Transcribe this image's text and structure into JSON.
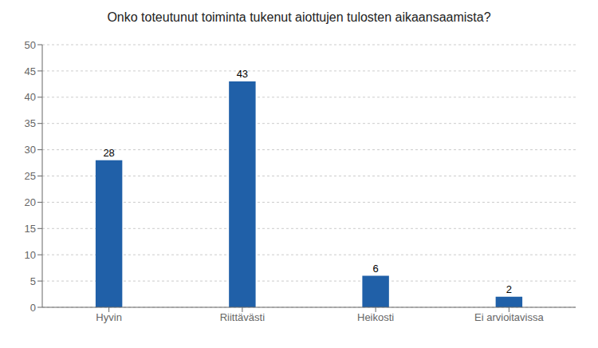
{
  "chart_data": {
    "type": "bar",
    "title": "Onko toteutunut toiminta tukenut aiottujen tulosten aikaansaamista?",
    "categories": [
      "Hyvin",
      "Riittävästi",
      "Heikosti",
      "Ei arvioitavissa"
    ],
    "values": [
      28,
      43,
      6,
      2
    ],
    "color": "#2060a8",
    "ylim": [
      0,
      50
    ],
    "yticks": [
      0,
      5,
      10,
      15,
      20,
      25,
      30,
      35,
      40,
      45,
      50
    ],
    "grid": true,
    "data_labels": true
  }
}
